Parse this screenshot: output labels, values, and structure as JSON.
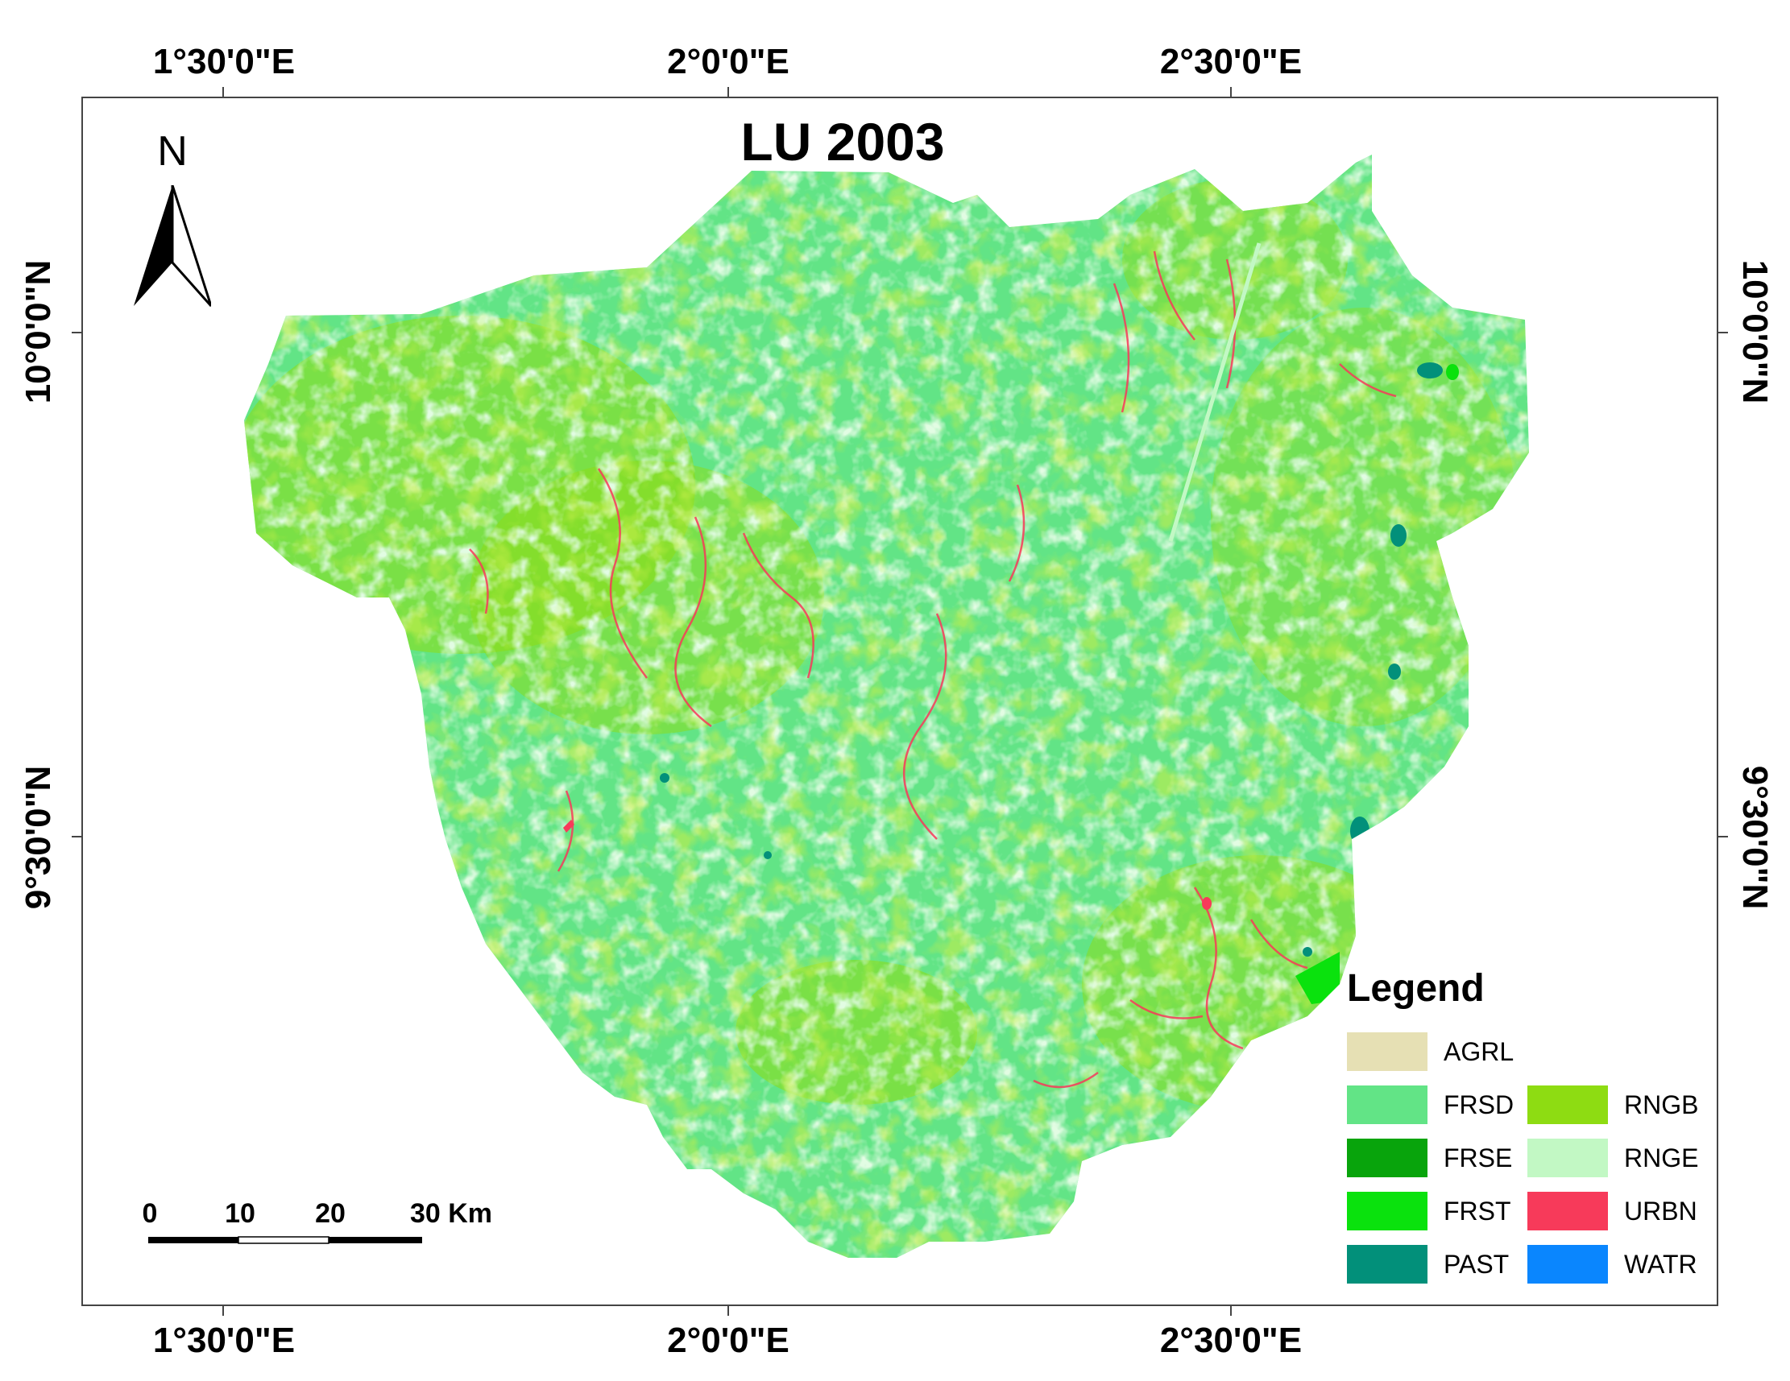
{
  "title": "LU 2003",
  "north_label": "N",
  "longitude_labels": [
    "1°30'0\"E",
    "2°0'0\"E",
    "2°30'0\"E"
  ],
  "latitude_labels": [
    "10°0'0\"N",
    "9°30'0\"N"
  ],
  "legend": {
    "title": "Legend",
    "items": [
      {
        "code": "AGRL",
        "color": "#e6e0b4"
      },
      {
        "code": "FRSD",
        "color": "#62e486"
      },
      {
        "code": "FRSE",
        "color": "#08a40c"
      },
      {
        "code": "FRST",
        "color": "#0ae20d"
      },
      {
        "code": "PAST",
        "color": "#02907a"
      },
      {
        "code": "RNGB",
        "color": "#8edc12"
      },
      {
        "code": "RNGE",
        "color": "#c2f8c4"
      },
      {
        "code": "URBN",
        "color": "#f73a5a"
      },
      {
        "code": "WATR",
        "color": "#0a86fe"
      }
    ]
  },
  "scale_bar": {
    "labels": [
      "0",
      "10",
      "20",
      "30 Km"
    ]
  }
}
